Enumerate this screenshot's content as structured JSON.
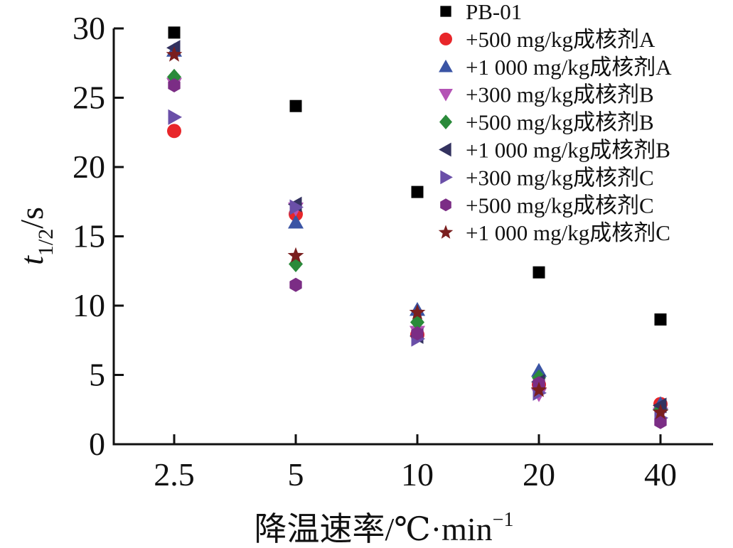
{
  "chart_data": {
    "type": "scatter",
    "title": "",
    "xlabel": "降温速率/℃·min",
    "xlabel_superscript": "−1",
    "ylabel_main": "t",
    "ylabel_subscript": "1/2",
    "ylabel_unit": "/s",
    "categories": [
      "2.5",
      "5",
      "10",
      "20",
      "40"
    ],
    "ylim": [
      0,
      30
    ],
    "yticks": [
      0,
      5,
      10,
      15,
      20,
      25,
      30
    ],
    "grid": false,
    "legend_position": "top-right",
    "series": [
      {
        "name": "PB-01",
        "marker": "square",
        "color": "#000000",
        "values": [
          29.7,
          24.4,
          18.2,
          12.4,
          9.0
        ]
      },
      {
        "name": "+500 mg/kg成核剂A",
        "marker": "circle",
        "color": "#e8262a",
        "values": [
          22.6,
          16.6,
          7.9,
          4.3,
          2.9
        ]
      },
      {
        "name": "+1 000 mg/kg成核剂A",
        "marker": "triangle-up",
        "color": "#3a54a4",
        "values": [
          28.4,
          16.0,
          9.7,
          5.3,
          2.9
        ]
      },
      {
        "name": "+300 mg/kg成核剂B",
        "marker": "triangle-down",
        "color": "#b453b5",
        "values": [
          26.0,
          17.0,
          8.1,
          3.6,
          2.2
        ]
      },
      {
        "name": "+500 mg/kg成核剂B",
        "marker": "diamond",
        "color": "#2a8a3a",
        "values": [
          26.5,
          13.0,
          8.8,
          4.8,
          2.5
        ]
      },
      {
        "name": "+1 000 mg/kg成核剂B",
        "marker": "triangle-left",
        "color": "#33325f",
        "values": [
          28.6,
          17.3,
          7.8,
          4.5,
          2.8
        ]
      },
      {
        "name": "+300 mg/kg成核剂C",
        "marker": "triangle-right",
        "color": "#6a4fa8",
        "values": [
          23.6,
          17.1,
          7.6,
          3.7,
          1.9
        ]
      },
      {
        "name": "+500 mg/kg成核剂C",
        "marker": "hexagon",
        "color": "#7b2d85",
        "values": [
          25.9,
          11.5,
          8.0,
          4.4,
          1.6
        ]
      },
      {
        "name": "+1 000 mg/kg成核剂C",
        "marker": "star",
        "color": "#7a1f1f",
        "values": [
          28.1,
          13.6,
          9.5,
          3.9,
          2.3
        ]
      }
    ]
  }
}
